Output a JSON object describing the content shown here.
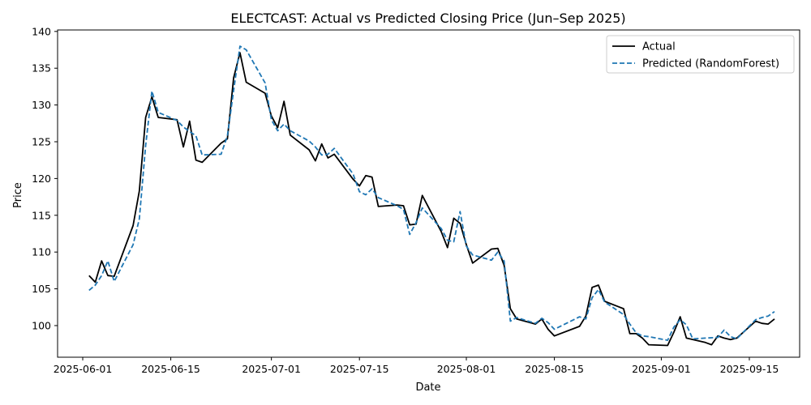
{
  "chart_data": {
    "type": "line",
    "title": "ELECTCAST: Actual vs Predicted Closing Price (Jun–Sep 2025)",
    "xlabel": "Date",
    "ylabel": "Price",
    "x_ticks": [
      "2025-06-01",
      "2025-06-15",
      "2025-07-01",
      "2025-07-15",
      "2025-08-01",
      "2025-08-15",
      "2025-09-01",
      "2025-09-15"
    ],
    "y_ticks": [
      100,
      105,
      110,
      115,
      120,
      125,
      130,
      135,
      140
    ],
    "xlim": [
      "2025-05-28",
      "2025-09-23"
    ],
    "ylim": [
      95.7,
      140.2
    ],
    "grid": false,
    "legend_position": "top-right",
    "series": [
      {
        "name": "Actual",
        "color": "#000000",
        "style": "solid",
        "points": [
          [
            "2025-06-02",
            106.8
          ],
          [
            "2025-06-03",
            105.9
          ],
          [
            "2025-06-04",
            108.8
          ],
          [
            "2025-06-05",
            106.8
          ],
          [
            "2025-06-06",
            106.7
          ],
          [
            "2025-06-09",
            113.6
          ],
          [
            "2025-06-10",
            118.3
          ],
          [
            "2025-06-11",
            128.3
          ],
          [
            "2025-06-12",
            131.1
          ],
          [
            "2025-06-13",
            128.3
          ],
          [
            "2025-06-16",
            128.0
          ],
          [
            "2025-06-17",
            124.3
          ],
          [
            "2025-06-18",
            127.8
          ],
          [
            "2025-06-19",
            122.5
          ],
          [
            "2025-06-20",
            122.2
          ],
          [
            "2025-06-23",
            124.8
          ],
          [
            "2025-06-24",
            125.4
          ],
          [
            "2025-06-25",
            133.7
          ],
          [
            "2025-06-26",
            137.1
          ],
          [
            "2025-06-27",
            133.1
          ],
          [
            "2025-06-30",
            131.6
          ],
          [
            "2025-07-01",
            128.5
          ],
          [
            "2025-07-02",
            126.9
          ],
          [
            "2025-07-03",
            130.5
          ],
          [
            "2025-07-04",
            125.9
          ],
          [
            "2025-07-07",
            123.9
          ],
          [
            "2025-07-08",
            122.4
          ],
          [
            "2025-07-09",
            124.7
          ],
          [
            "2025-07-10",
            122.8
          ],
          [
            "2025-07-11",
            123.3
          ],
          [
            "2025-07-14",
            119.9
          ],
          [
            "2025-07-15",
            119.0
          ],
          [
            "2025-07-16",
            120.4
          ],
          [
            "2025-07-17",
            120.2
          ],
          [
            "2025-07-18",
            116.2
          ],
          [
            "2025-07-21",
            116.4
          ],
          [
            "2025-07-22",
            116.3
          ],
          [
            "2025-07-23",
            113.7
          ],
          [
            "2025-07-24",
            113.8
          ],
          [
            "2025-07-25",
            117.7
          ],
          [
            "2025-07-28",
            112.8
          ],
          [
            "2025-07-29",
            110.6
          ],
          [
            "2025-07-30",
            114.6
          ],
          [
            "2025-07-31",
            113.9
          ],
          [
            "2025-08-01",
            111.0
          ],
          [
            "2025-08-02",
            108.5
          ],
          [
            "2025-08-05",
            110.4
          ],
          [
            "2025-08-06",
            110.5
          ],
          [
            "2025-08-07",
            108.2
          ],
          [
            "2025-08-08",
            102.3
          ],
          [
            "2025-08-09",
            100.9
          ],
          [
            "2025-08-12",
            100.2
          ],
          [
            "2025-08-13",
            100.9
          ],
          [
            "2025-08-14",
            99.5
          ],
          [
            "2025-08-15",
            98.6
          ],
          [
            "2025-08-19",
            99.9
          ],
          [
            "2025-08-20",
            101.3
          ],
          [
            "2025-08-21",
            105.2
          ],
          [
            "2025-08-22",
            105.5
          ],
          [
            "2025-08-23",
            103.3
          ],
          [
            "2025-08-26",
            102.3
          ],
          [
            "2025-08-27",
            98.9
          ],
          [
            "2025-08-28",
            98.9
          ],
          [
            "2025-08-29",
            98.3
          ],
          [
            "2025-08-30",
            97.4
          ],
          [
            "2025-09-02",
            97.3
          ],
          [
            "2025-09-03",
            99.1
          ],
          [
            "2025-09-04",
            101.2
          ],
          [
            "2025-09-05",
            98.3
          ],
          [
            "2025-09-08",
            97.7
          ],
          [
            "2025-09-09",
            97.4
          ],
          [
            "2025-09-10",
            98.6
          ],
          [
            "2025-09-11",
            98.3
          ],
          [
            "2025-09-12",
            98.1
          ],
          [
            "2025-09-13",
            98.3
          ],
          [
            "2025-09-16",
            100.6
          ],
          [
            "2025-09-17",
            100.3
          ],
          [
            "2025-09-18",
            100.2
          ],
          [
            "2025-09-19",
            100.9
          ]
        ]
      },
      {
        "name": "Predicted (RandomForest)",
        "color": "#1f77b4",
        "style": "dashed",
        "points": [
          [
            "2025-06-02",
            104.8
          ],
          [
            "2025-06-03",
            105.5
          ],
          [
            "2025-06-04",
            106.8
          ],
          [
            "2025-06-05",
            108.8
          ],
          [
            "2025-06-06",
            106.0
          ],
          [
            "2025-06-09",
            111.0
          ],
          [
            "2025-06-10",
            114.5
          ],
          [
            "2025-06-11",
            124.5
          ],
          [
            "2025-06-12",
            131.9
          ],
          [
            "2025-06-13",
            129.0
          ],
          [
            "2025-06-16",
            127.9
          ],
          [
            "2025-06-17",
            127.0
          ],
          [
            "2025-06-18",
            126.4
          ],
          [
            "2025-06-19",
            125.8
          ],
          [
            "2025-06-20",
            123.2
          ],
          [
            "2025-06-23",
            123.3
          ],
          [
            "2025-06-24",
            125.8
          ],
          [
            "2025-06-25",
            132.0
          ],
          [
            "2025-06-26",
            138.0
          ],
          [
            "2025-06-27",
            137.5
          ],
          [
            "2025-06-30",
            133.0
          ],
          [
            "2025-07-01",
            128.0
          ],
          [
            "2025-07-02",
            126.5
          ],
          [
            "2025-07-03",
            127.4
          ],
          [
            "2025-07-04",
            126.5
          ],
          [
            "2025-07-07",
            125.1
          ],
          [
            "2025-07-08",
            124.3
          ],
          [
            "2025-07-09",
            123.2
          ],
          [
            "2025-07-10",
            123.3
          ],
          [
            "2025-07-11",
            124.1
          ],
          [
            "2025-07-14",
            120.6
          ],
          [
            "2025-07-15",
            118.2
          ],
          [
            "2025-07-16",
            117.8
          ],
          [
            "2025-07-17",
            118.6
          ],
          [
            "2025-07-18",
            117.4
          ],
          [
            "2025-07-21",
            116.3
          ],
          [
            "2025-07-22",
            115.8
          ],
          [
            "2025-07-23",
            112.4
          ],
          [
            "2025-07-24",
            114.0
          ],
          [
            "2025-07-25",
            116.0
          ],
          [
            "2025-07-28",
            113.2
          ],
          [
            "2025-07-29",
            111.6
          ],
          [
            "2025-07-30",
            111.4
          ],
          [
            "2025-07-31",
            115.5
          ],
          [
            "2025-08-01",
            110.8
          ],
          [
            "2025-08-02",
            109.6
          ],
          [
            "2025-08-05",
            108.9
          ],
          [
            "2025-08-06",
            110.0
          ],
          [
            "2025-08-07",
            108.8
          ],
          [
            "2025-08-08",
            100.6
          ],
          [
            "2025-08-09",
            101.1
          ],
          [
            "2025-08-12",
            100.3
          ],
          [
            "2025-08-13",
            101.0
          ],
          [
            "2025-08-14",
            100.4
          ],
          [
            "2025-08-15",
            99.5
          ],
          [
            "2025-08-19",
            101.2
          ],
          [
            "2025-08-20",
            100.9
          ],
          [
            "2025-08-21",
            103.8
          ],
          [
            "2025-08-22",
            104.9
          ],
          [
            "2025-08-23",
            103.2
          ],
          [
            "2025-08-26",
            101.5
          ],
          [
            "2025-08-27",
            100.2
          ],
          [
            "2025-08-28",
            99.0
          ],
          [
            "2025-08-29",
            98.6
          ],
          [
            "2025-08-30",
            98.5
          ],
          [
            "2025-09-02",
            98.0
          ],
          [
            "2025-09-03",
            99.8
          ],
          [
            "2025-09-04",
            100.8
          ],
          [
            "2025-09-05",
            100.1
          ],
          [
            "2025-09-06",
            98.2
          ],
          [
            "2025-09-08",
            98.3
          ],
          [
            "2025-09-10",
            98.4
          ],
          [
            "2025-09-11",
            99.4
          ],
          [
            "2025-09-12",
            98.5
          ],
          [
            "2025-09-13",
            98.2
          ],
          [
            "2025-09-16",
            100.8
          ],
          [
            "2025-09-17",
            101.1
          ],
          [
            "2025-09-18",
            101.3
          ],
          [
            "2025-09-19",
            101.9
          ]
        ]
      }
    ]
  }
}
